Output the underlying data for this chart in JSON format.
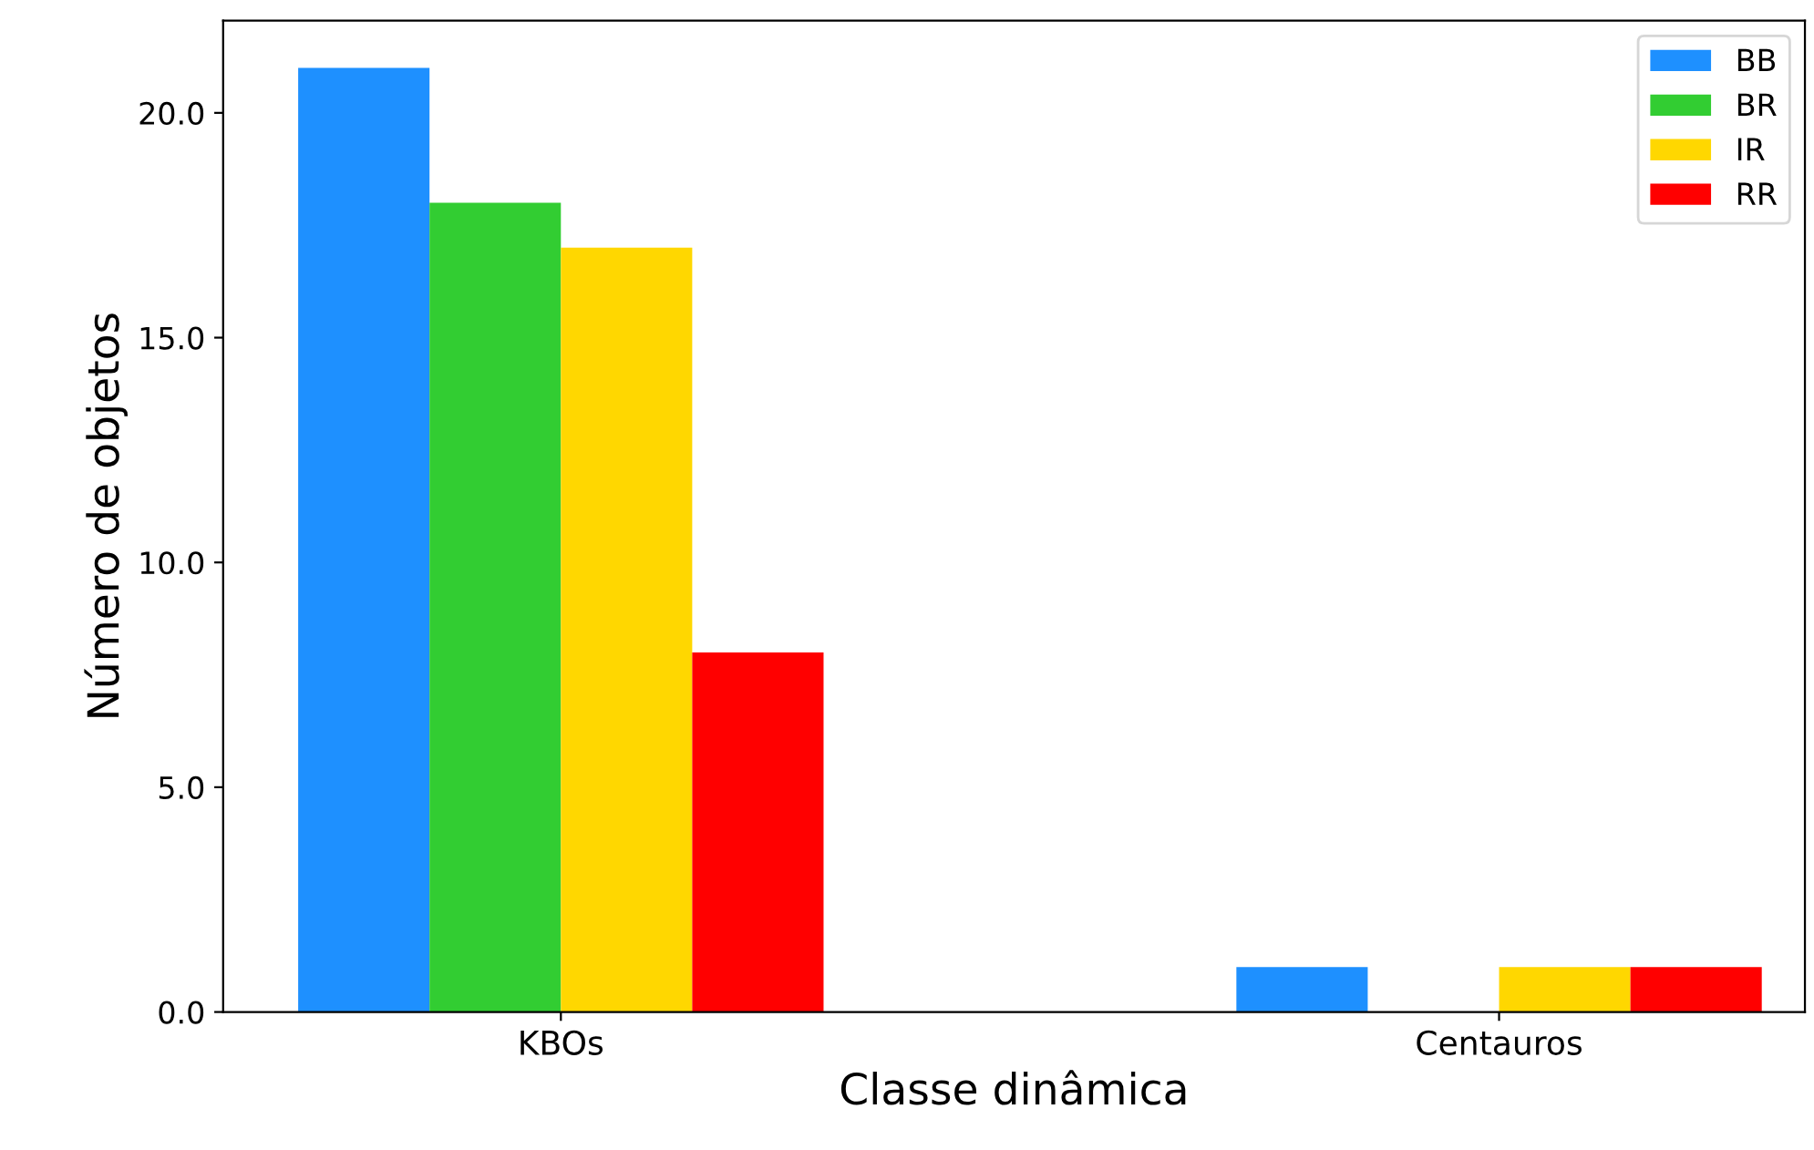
{
  "chart_data": {
    "type": "bar",
    "xlabel": "Classe dinâmica",
    "ylabel": "Número de objetos",
    "categories": [
      "KBOs",
      "Centauros"
    ],
    "series": [
      {
        "name": "BB",
        "color": "#1e90ff",
        "values": [
          21,
          1
        ]
      },
      {
        "name": "BR",
        "color": "#32cd32",
        "values": [
          18,
          0
        ]
      },
      {
        "name": "IR",
        "color": "#ffd700",
        "values": [
          17,
          1
        ]
      },
      {
        "name": "RR",
        "color": "#ff0000",
        "values": [
          8,
          1
        ]
      }
    ],
    "ylim": [
      0,
      22.05
    ],
    "yticks": [
      {
        "value": 0,
        "label": "0.0"
      },
      {
        "value": 5,
        "label": "5.0"
      },
      {
        "value": 10,
        "label": "10.0"
      },
      {
        "value": 15,
        "label": "15.0"
      },
      {
        "value": 20,
        "label": "20.0"
      }
    ],
    "grid": false,
    "legend": "top right"
  }
}
